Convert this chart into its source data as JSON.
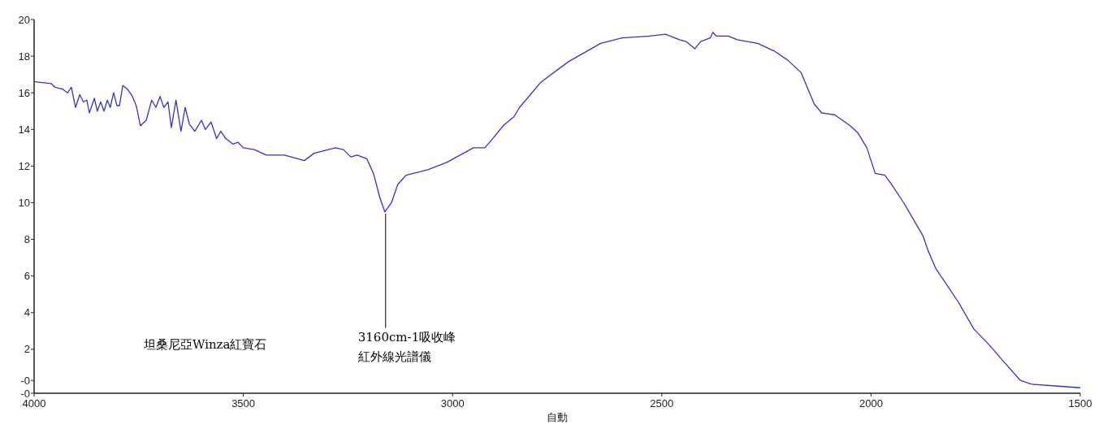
{
  "chart_data": {
    "type": "line",
    "xlabel": "自動",
    "x": [
      3998,
      3959,
      3950,
      3932,
      3920,
      3911,
      3901,
      3891,
      3882,
      3874,
      3868,
      3856,
      3849,
      3841,
      3833,
      3825,
      3818,
      3810,
      3802,
      3796,
      3788,
      3777,
      3765,
      3756,
      3746,
      3732,
      3719,
      3709,
      3699,
      3690,
      3680,
      3672,
      3661,
      3649,
      3639,
      3629,
      3616,
      3600,
      3591,
      3577,
      3564,
      3554,
      3542,
      3525,
      3513,
      3500,
      3474,
      3445,
      3402,
      3354,
      3331,
      3280,
      3261,
      3243,
      3228,
      3205,
      3189,
      3174,
      3162,
      3146,
      3131,
      3111,
      3059,
      3014,
      2982,
      2950,
      2923,
      2904,
      2879,
      2853,
      2840,
      2788,
      2723,
      2646,
      2594,
      2529,
      2491,
      2458,
      2442,
      2421,
      2407,
      2384,
      2378,
      2370,
      2341,
      2320,
      2271,
      2233,
      2200,
      2167,
      2136,
      2118,
      2087,
      2050,
      2031,
      2010,
      1990,
      1967,
      1951,
      1922,
      1876,
      1864,
      1845,
      1792,
      1754,
      1720,
      1682,
      1643,
      1618,
      1560,
      1500
    ],
    "series": [
      {
        "color": "#3333cc",
        "values": [
          16.6,
          16.5,
          16.3,
          16.2,
          16.0,
          16.3,
          15.2,
          15.9,
          15.5,
          15.6,
          14.9,
          15.7,
          15.0,
          15.5,
          15.0,
          15.6,
          15.2,
          16.0,
          15.3,
          15.3,
          16.4,
          16.2,
          15.8,
          15.3,
          14.2,
          14.5,
          15.6,
          15.2,
          15.8,
          15.2,
          15.5,
          14.1,
          15.6,
          13.9,
          15.2,
          14.3,
          13.9,
          14.5,
          14.0,
          14.4,
          13.5,
          13.9,
          13.5,
          13.2,
          13.3,
          13.0,
          12.9,
          12.6,
          12.6,
          12.3,
          12.7,
          13.0,
          12.9,
          12.5,
          12.6,
          12.4,
          11.6,
          10.3,
          9.5,
          10.0,
          11.0,
          11.5,
          11.8,
          12.2,
          12.6,
          13.0,
          13.0,
          13.5,
          14.2,
          14.7,
          15.2,
          16.6,
          17.7,
          18.7,
          19.0,
          19.1,
          19.2,
          18.9,
          18.8,
          18.4,
          18.8,
          19.0,
          19.3,
          19.1,
          19.1,
          18.9,
          18.7,
          18.3,
          17.8,
          17.1,
          15.4,
          14.9,
          14.8,
          14.2,
          13.8,
          13.0,
          11.6,
          11.5,
          11.0,
          10.0,
          8.2,
          7.4,
          6.4,
          4.6,
          3.1,
          2.3,
          1.3,
          0.3,
          0.1,
          0.0,
          -0.1
        ]
      }
    ],
    "xlim": [
      4000,
      1500
    ],
    "xticks": [
      4000,
      3500,
      3000,
      2500,
      2000,
      1500
    ],
    "ylim": [
      -0.4,
      20
    ],
    "yticks": [
      20,
      18,
      16,
      14,
      12,
      10,
      8,
      6,
      4,
      2,
      {
        "value": 0.3,
        "label": "-0"
      },
      {
        "value": -0.4,
        "label": "-0"
      }
    ],
    "grid": false,
    "marker": "none",
    "line_style": "solid",
    "annotations": [
      "坦桑尼亞Winza紅寶石",
      {
        "text": "3160cm-1吸收峰",
        "x": 3160,
        "y": 9.5
      },
      "紅外線光譜儀"
    ]
  }
}
